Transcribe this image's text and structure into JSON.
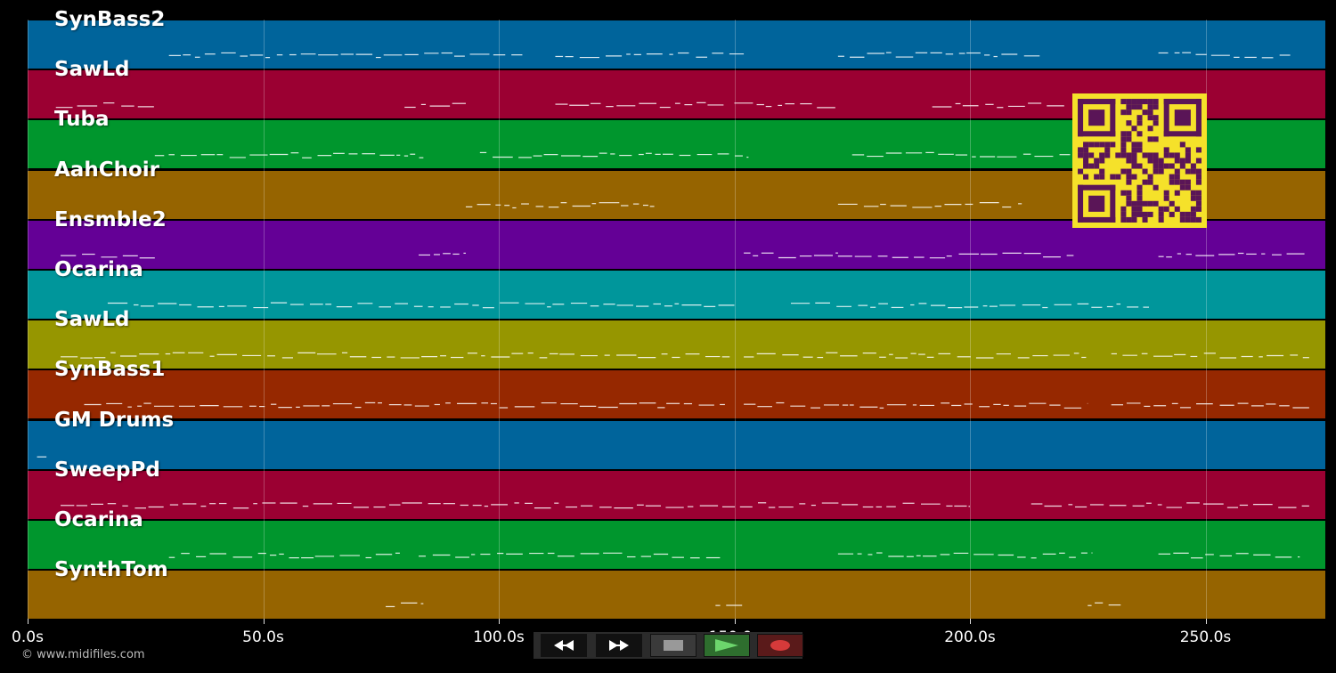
{
  "app": {
    "copyright": "© www.midifiles.com"
  },
  "timeline": {
    "duration_seconds": 275,
    "tick_labels": [
      "0.0s",
      "50.0s",
      "100.0s",
      "150.0s",
      "200.0s",
      "250.0s"
    ],
    "tick_values": [
      0,
      50,
      100,
      150,
      200,
      250
    ]
  },
  "tracks": [
    {
      "name": "SynBass2",
      "color": "#00649b"
    },
    {
      "name": "SawLd",
      "color": "#9b0032"
    },
    {
      "name": "Tuba",
      "color": "#00962d"
    },
    {
      "name": "AahChoir",
      "color": "#966400"
    },
    {
      "name": "Ensmble2",
      "color": "#640096"
    },
    {
      "name": "Ocarina",
      "color": "#00969b"
    },
    {
      "name": "SawLd",
      "color": "#969600"
    },
    {
      "name": "SynBass1",
      "color": "#962800"
    },
    {
      "name": "GM Drums",
      "color": "#00649b"
    },
    {
      "name": "SweepPd",
      "color": "#9b0032"
    },
    {
      "name": "Ocarina",
      "color": "#00962d"
    },
    {
      "name": "SynthTom",
      "color": "#966400"
    }
  ],
  "transport": {
    "buttons": [
      {
        "name": "rewind-button",
        "icon": "rewind-icon"
      },
      {
        "name": "fast-forward-button",
        "icon": "fast-forward-icon"
      },
      {
        "name": "stop-button",
        "icon": "stop-icon"
      },
      {
        "name": "play-button",
        "icon": "play-icon"
      },
      {
        "name": "record-button",
        "icon": "record-icon"
      }
    ]
  },
  "overlay": {
    "qr_icon": "qr-code-icon",
    "qr_colors": {
      "background": "#f5e12a",
      "foreground": "#5a1557"
    }
  }
}
